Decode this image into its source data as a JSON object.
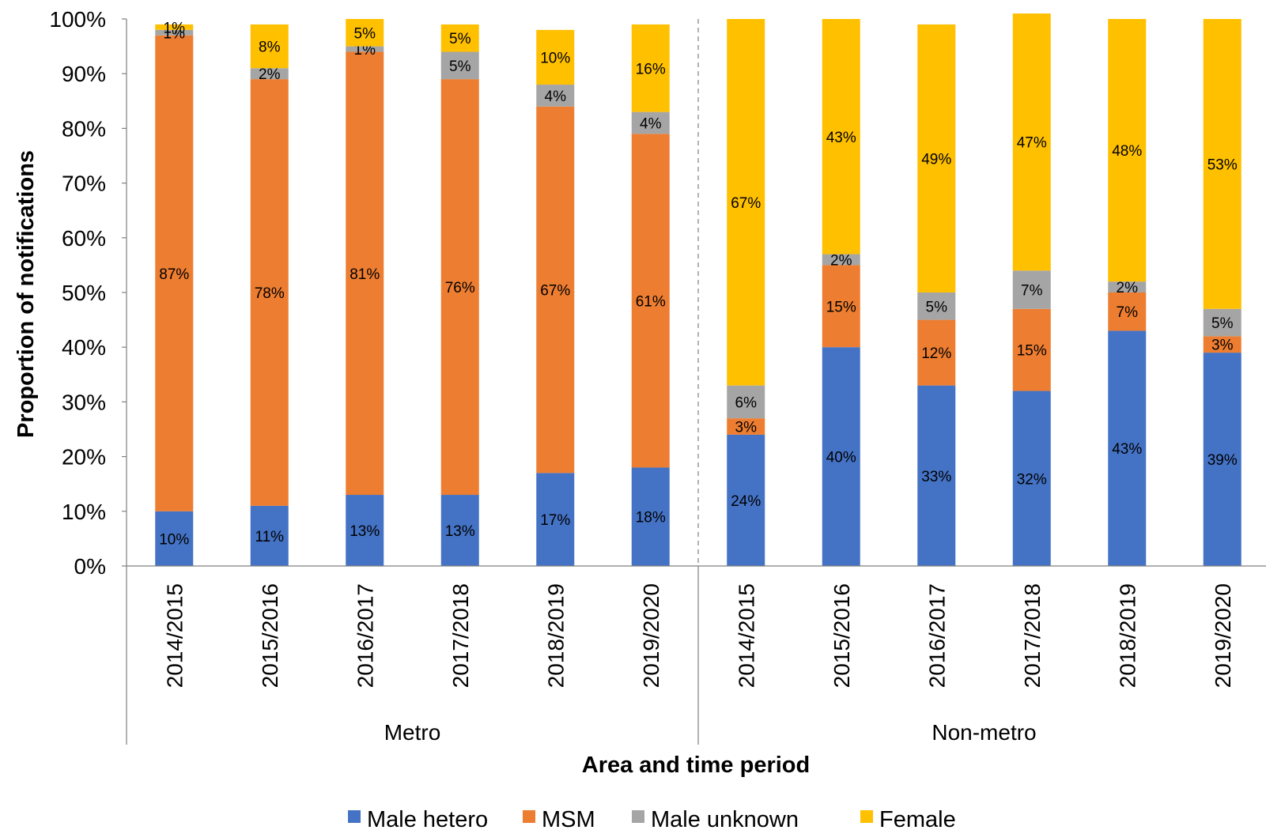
{
  "chart_data": {
    "type": "bar",
    "stacked": true,
    "xlabel": "Area and time period",
    "ylabel": "Proportion of notifications",
    "ylim": [
      0,
      100
    ],
    "yticks": [
      "0%",
      "10%",
      "20%",
      "30%",
      "40%",
      "50%",
      "60%",
      "70%",
      "80%",
      "90%",
      "100%"
    ],
    "groups": [
      {
        "name": "Metro",
        "categories": [
          "2014/2015",
          "2015/2016",
          "2016/2017",
          "2017/2018",
          "2018/2019",
          "2019/2020"
        ]
      },
      {
        "name": "Non-metro",
        "categories": [
          "2014/2015",
          "2015/2016",
          "2016/2017",
          "2017/2018",
          "2018/2019",
          "2019/2020"
        ]
      }
    ],
    "series": [
      {
        "name": "Male hetero",
        "color": "#4472C4",
        "values": [
          10,
          11,
          13,
          13,
          17,
          18,
          24,
          40,
          33,
          32,
          43,
          39
        ]
      },
      {
        "name": "MSM",
        "color": "#ED7D31",
        "values": [
          87,
          78,
          81,
          76,
          67,
          61,
          3,
          15,
          12,
          15,
          7,
          3
        ]
      },
      {
        "name": "Male unknown",
        "color": "#A5A5A5",
        "values": [
          1,
          2,
          1,
          5,
          4,
          4,
          6,
          2,
          5,
          7,
          2,
          5
        ]
      },
      {
        "name": "Female",
        "color": "#FFC000",
        "values": [
          1,
          8,
          5,
          5,
          10,
          16,
          67,
          43,
          49,
          47,
          48,
          53
        ]
      }
    ],
    "legend": "bottom",
    "grid": false
  }
}
